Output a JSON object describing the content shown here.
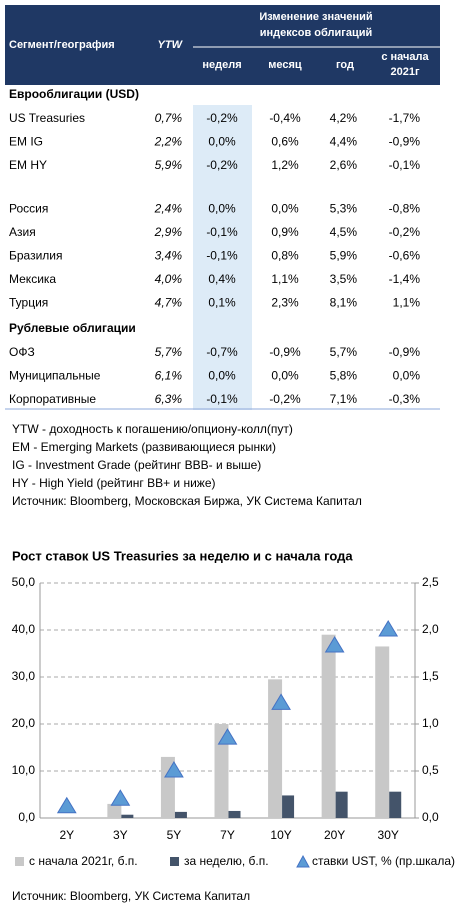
{
  "table": {
    "header": {
      "segment": "Сегмент/география",
      "ytw": "YTW",
      "group": [
        "Изменение значений",
        "индексов облигаций"
      ],
      "columns": [
        "неделя",
        "месяц",
        "год"
      ],
      "ytd": [
        "с начала",
        "2021г"
      ]
    },
    "sections": [
      {
        "title": "Еврооблигации (USD)",
        "rows": [
          [
            "US Treasuries",
            "0,7%",
            "-0,2%",
            "-0,4%",
            "4,2%",
            "-1,7%"
          ],
          [
            "EM IG",
            "2,2%",
            "0,0%",
            "0,6%",
            "4,4%",
            "-0,9%"
          ],
          [
            "EM HY",
            "5,9%",
            "-0,2%",
            "1,2%",
            "2,6%",
            "-0,1%"
          ],
          [
            "Россия",
            "2,4%",
            "0,0%",
            "0,0%",
            "5,3%",
            "-0,8%"
          ],
          [
            "Азия",
            "2,9%",
            "-0,1%",
            "0,9%",
            "4,5%",
            "-0,2%"
          ],
          [
            "Бразилия",
            "3,4%",
            "-0,1%",
            "0,8%",
            "5,9%",
            "-0,6%"
          ],
          [
            "Мексика",
            "4,0%",
            "0,4%",
            "1,1%",
            "3,5%",
            "-1,4%"
          ],
          [
            "Турция",
            "4,7%",
            "0,1%",
            "2,3%",
            "8,1%",
            "1,1%"
          ]
        ]
      },
      {
        "title": "Рублевые облигации",
        "rows": [
          [
            "ОФЗ",
            "5,7%",
            "-0,7%",
            "-0,9%",
            "5,7%",
            "-0,9%"
          ],
          [
            "Муниципальные",
            "6,1%",
            "0,0%",
            "0,0%",
            "5,8%",
            "0,0%"
          ],
          [
            "Корпоративные",
            "6,3%",
            "-0,1%",
            "-0,2%",
            "7,1%",
            "-0,3%"
          ]
        ]
      }
    ]
  },
  "notes": [
    "YTW - доходность к погашению/опциону-колл(пут)",
    "EM - Emerging Markets (развивающиеся рынки)",
    "IG - Investment Grade (рейтинг BBB- и выше)",
    "HY - High Yield (рейтинг BB+ и ниже)",
    "Источник: Bloomberg, Московская Биржа, УК Система Капитал"
  ],
  "chart_data": {
    "type": "bar",
    "title": "Рост ставок US Treasuries за неделю и с начала года",
    "categories": [
      "2Y",
      "3Y",
      "5Y",
      "7Y",
      "10Y",
      "20Y",
      "30Y"
    ],
    "series": [
      {
        "name": "с начала 2021г, б.п.",
        "color": "#c8c8c8",
        "values": [
          0,
          3,
          13,
          20,
          29.5,
          39,
          36.5
        ]
      },
      {
        "name": "за неделю, б.п.",
        "color": "#44546a",
        "values": [
          0,
          0.7,
          1.3,
          1.5,
          4.8,
          5.6,
          5.6
        ]
      },
      {
        "name": "ставки UST, % (пр.шкала)",
        "color": "#5b9bd5",
        "axis": "y2",
        "marker": "triangle",
        "values": [
          0.12,
          0.2,
          0.5,
          0.85,
          1.22,
          1.83,
          2.0
        ]
      }
    ],
    "ylim": [
      0,
      50
    ],
    "yticks": [
      {
        "value": 0,
        "label": "0,0"
      },
      {
        "value": 10,
        "label": "10,0"
      },
      {
        "value": 20,
        "label": "20,0"
      },
      {
        "value": 30,
        "label": "30,0"
      },
      {
        "value": 40,
        "label": "40,0"
      },
      {
        "value": 50,
        "label": "50,0"
      }
    ],
    "y2lim": [
      0,
      2.5
    ],
    "y2ticks": [
      {
        "value": 0,
        "label": "0,0"
      },
      {
        "value": 0.5,
        "label": "0,5"
      },
      {
        "value": 1,
        "label": "1,0"
      },
      {
        "value": 1.5,
        "label": "1,5"
      },
      {
        "value": 2,
        "label": "2,0"
      },
      {
        "value": 2.5,
        "label": "2,5"
      }
    ],
    "grid": true,
    "legend": "bottom",
    "source": "Источник: Bloomberg, УК Система Капитал"
  }
}
